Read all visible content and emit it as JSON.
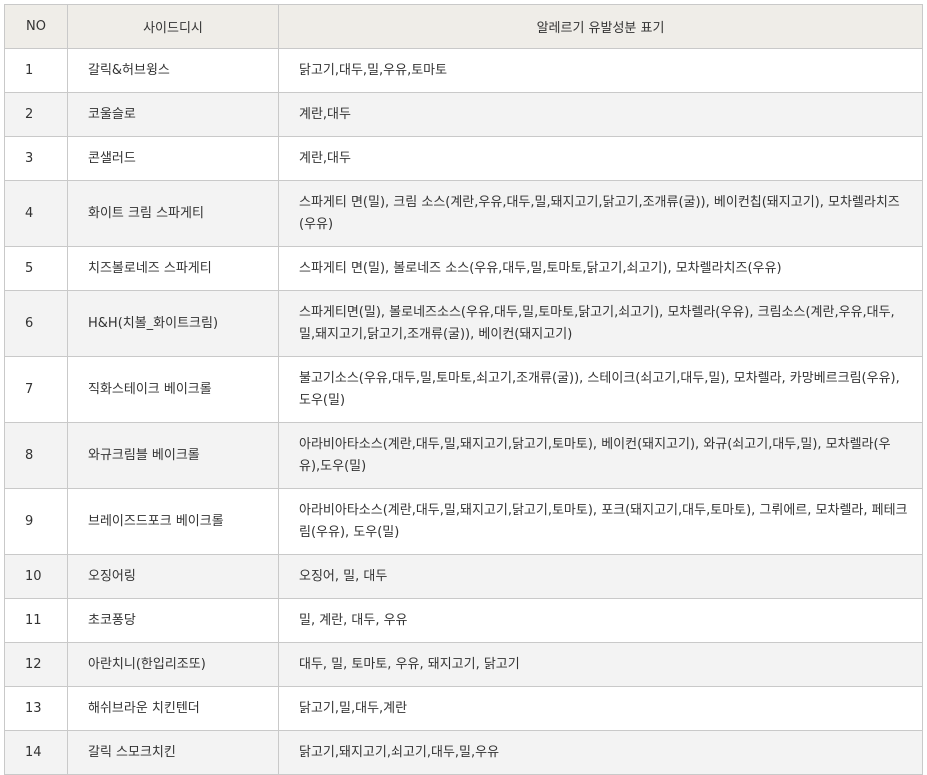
{
  "headers": {
    "no": "NO",
    "name": "사이드디시",
    "allergy": "알레르기 유발성분 표기"
  },
  "rows": [
    {
      "no": "1",
      "name": "갈릭&허브윙스",
      "allergy": "닭고기,대두,밀,우유,토마토"
    },
    {
      "no": "2",
      "name": "코울슬로",
      "allergy": "계란,대두"
    },
    {
      "no": "3",
      "name": "콘샐러드",
      "allergy": "계란,대두"
    },
    {
      "no": "4",
      "name": "화이트 크림 스파게티",
      "allergy": "스파게티 면(밀), 크림 소스(계란,우유,대두,밀,돼지고기,닭고기,조개류(굴)), 베이컨칩(돼지고기), 모차렐라치즈(우유)"
    },
    {
      "no": "5",
      "name": "치즈볼로네즈 스파게티",
      "allergy": "스파게티 면(밀), 볼로네즈 소스(우유,대두,밀,토마토,닭고기,쇠고기), 모차렐라치즈(우유)"
    },
    {
      "no": "6",
      "name": "H&H(치볼_화이트크림)",
      "allergy": "스파게티면(밀), 볼로네즈소스(우유,대두,밀,토마토,닭고기,쇠고기), 모차렐라(우유), 크림소스(계란,우유,대두,밀,돼지고기,닭고기,조개류(굴)), 베이컨(돼지고기)"
    },
    {
      "no": "7",
      "name": "직화스테이크 베이크롤",
      "allergy": "불고기소스(우유,대두,밀,토마토,쇠고기,조개류(굴)), 스테이크(쇠고기,대두,밀), 모차렐라, 카망베르크림(우유),도우(밀)"
    },
    {
      "no": "8",
      "name": "와규크림블 베이크롤",
      "allergy": "아라비아타소스(계란,대두,밀,돼지고기,닭고기,토마토), 베이컨(돼지고기), 와규(쇠고기,대두,밀), 모차렐라(우유),도우(밀)"
    },
    {
      "no": "9",
      "name": "브레이즈드포크 베이크롤",
      "allergy": "아라비아타소스(계란,대두,밀,돼지고기,닭고기,토마토), 포크(돼지고기,대두,토마토), 그뤼에르, 모차렐라, 페테크림(우유), 도우(밀)"
    },
    {
      "no": "10",
      "name": "오징어링",
      "allergy": "오징어, 밀, 대두"
    },
    {
      "no": "11",
      "name": "초코퐁당",
      "allergy": "밀, 계란, 대두, 우유"
    },
    {
      "no": "12",
      "name": "아란치니(한입리조또)",
      "allergy": "대두, 밀, 토마토, 우유, 돼지고기, 닭고기"
    },
    {
      "no": "13",
      "name": "해쉬브라운 치킨텐더",
      "allergy": "닭고기,밀,대두,계란"
    },
    {
      "no": "14",
      "name": "갈릭 스모크치킨",
      "allergy": "닭고기,돼지고기,쇠고기,대두,밀,우유"
    }
  ]
}
